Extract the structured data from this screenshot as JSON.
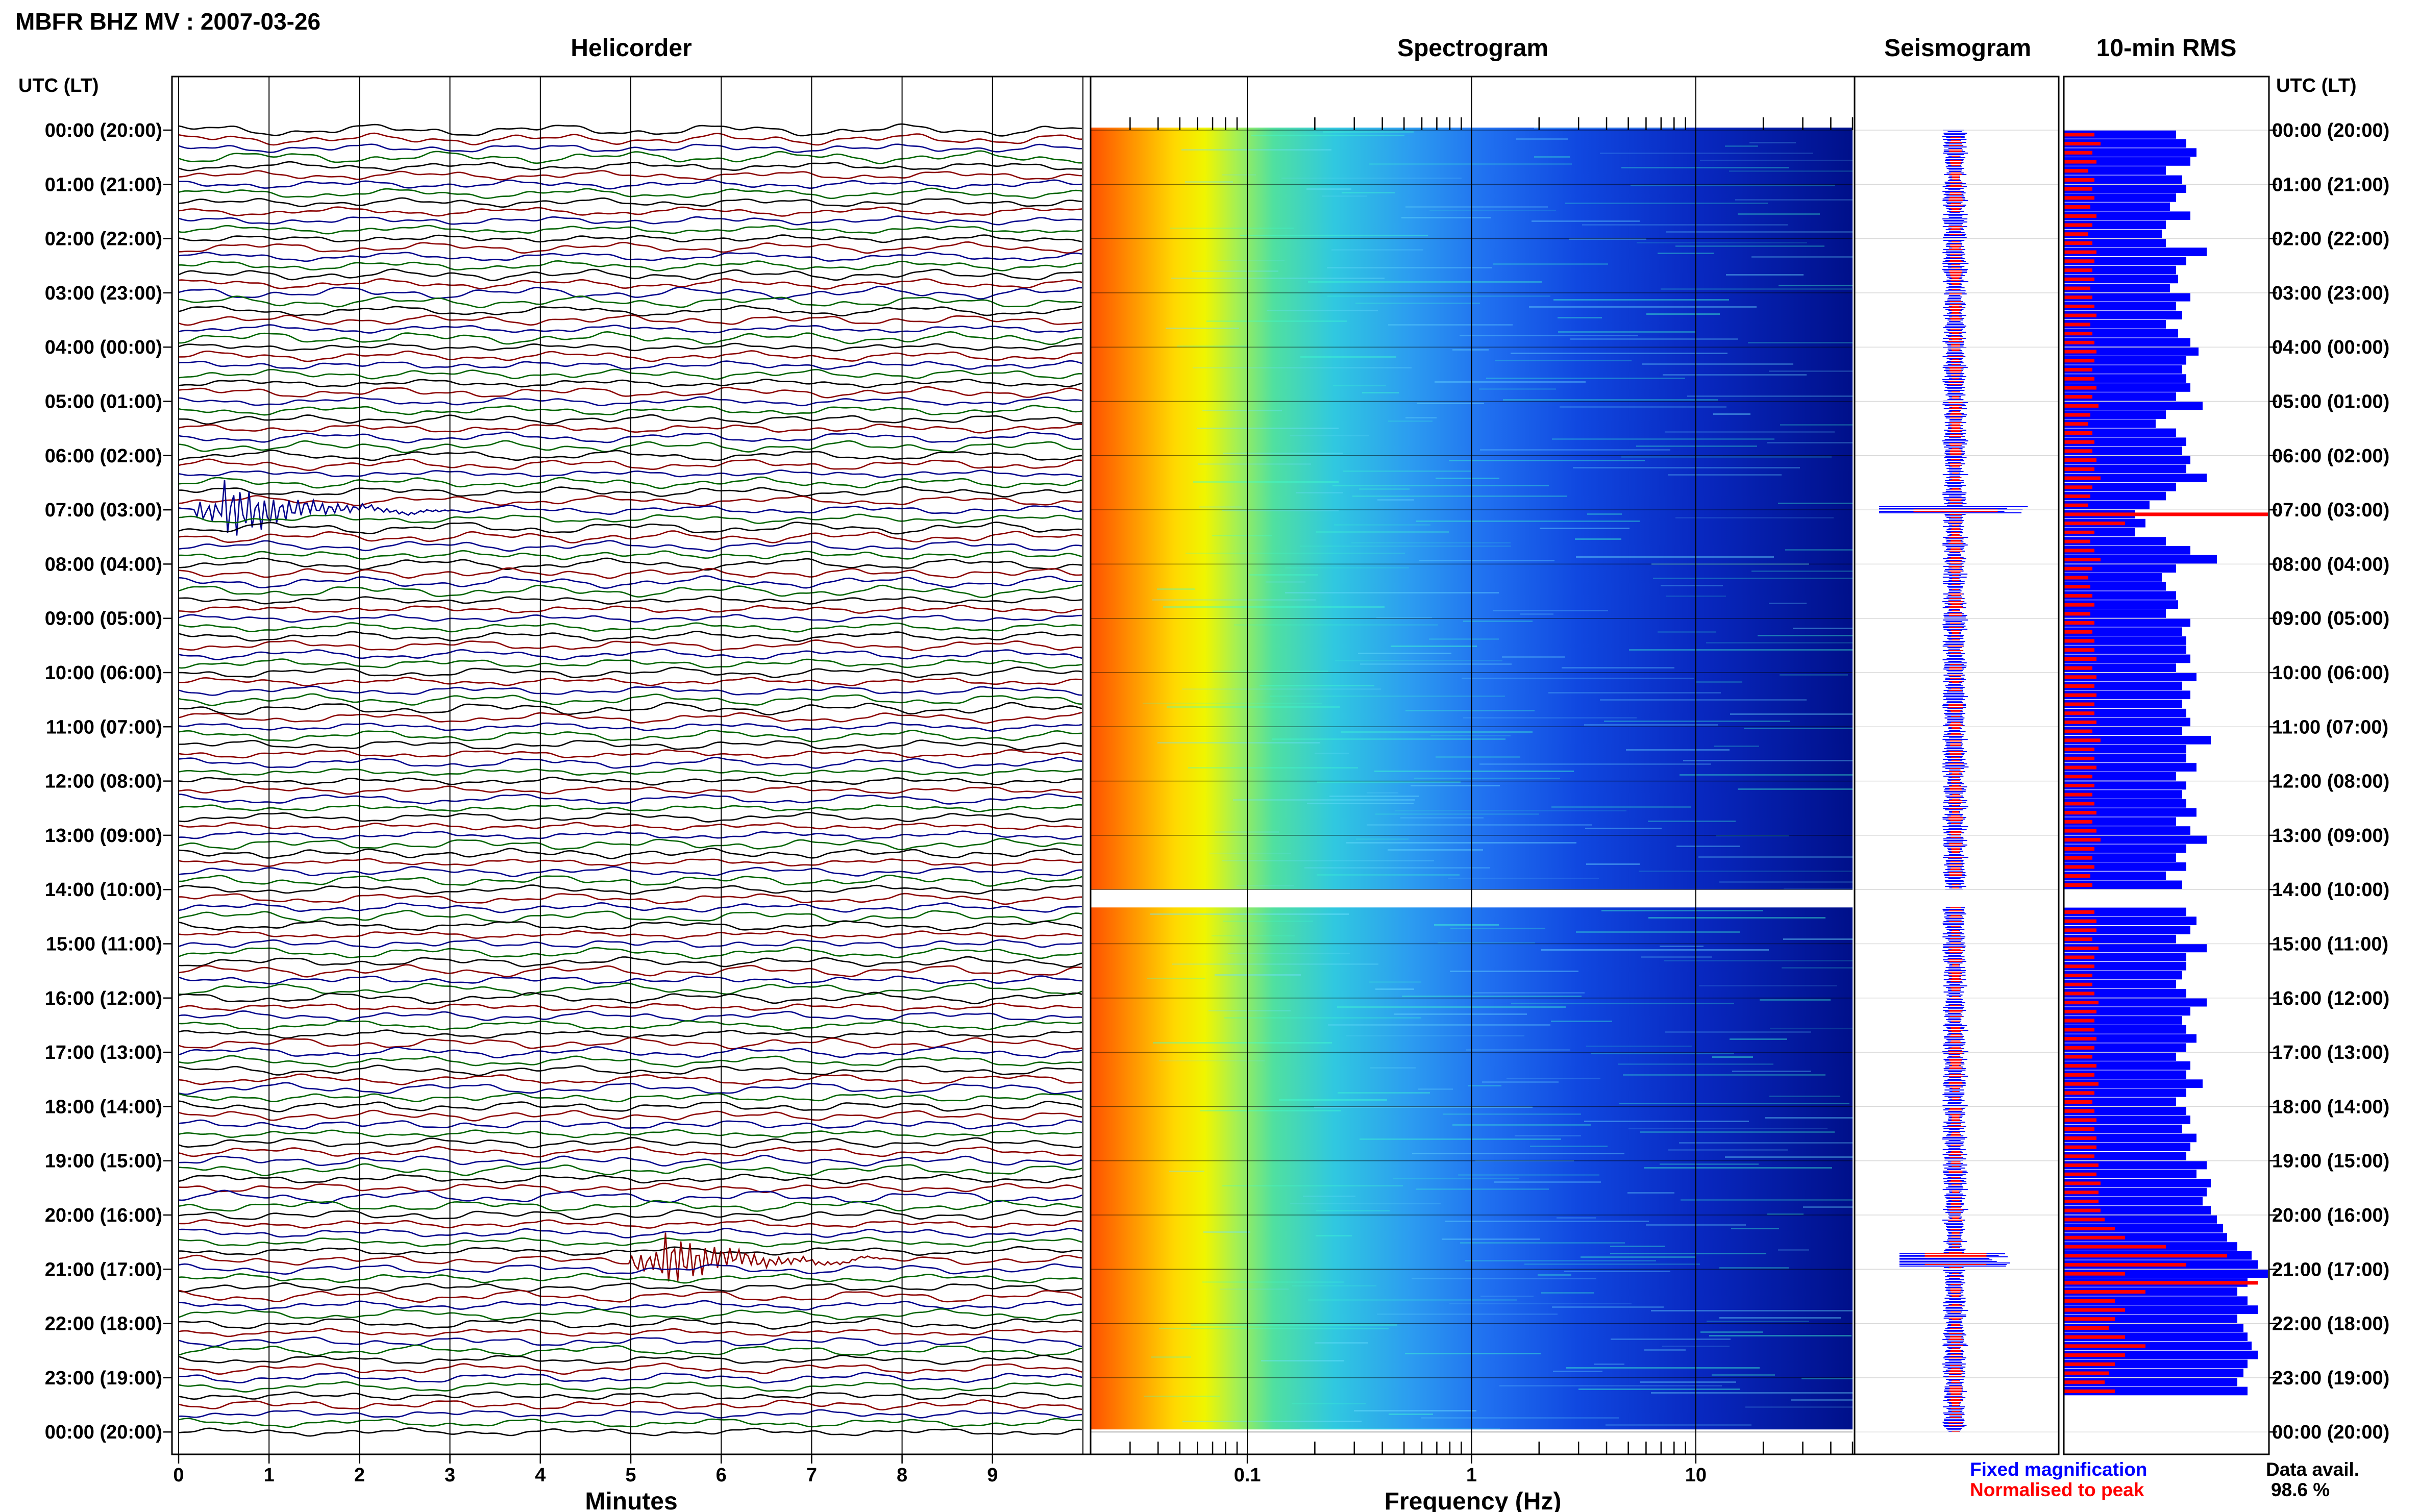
{
  "page_title": "MBFR BHZ MV : 2007-03-26",
  "panels": {
    "helicorder": "Helicorder",
    "spectrogram": "Spectrogram",
    "seismogram": "Seismogram",
    "rms": "10-min RMS"
  },
  "time_axis_label": "UTC (LT)",
  "time_ticks": [
    "00:00 (20:00)",
    "01:00 (21:00)",
    "02:00 (22:00)",
    "03:00 (23:00)",
    "04:00 (00:00)",
    "05:00 (01:00)",
    "06:00 (02:00)",
    "07:00 (03:00)",
    "08:00 (04:00)",
    "09:00 (05:00)",
    "10:00 (06:00)",
    "11:00 (07:00)",
    "12:00 (08:00)",
    "13:00 (09:00)",
    "14:00 (10:00)",
    "15:00 (11:00)",
    "16:00 (12:00)",
    "17:00 (13:00)",
    "18:00 (14:00)",
    "19:00 (15:00)",
    "20:00 (16:00)",
    "21:00 (17:00)",
    "22:00 (18:00)",
    "23:00 (19:00)",
    "00:00 (20:00)"
  ],
  "helicorder_xlabel": "Minutes",
  "helicorder_xticks": [
    "0",
    "1",
    "2",
    "3",
    "4",
    "5",
    "6",
    "7",
    "8",
    "9"
  ],
  "spectrogram_xlabel": "Frequency (Hz)",
  "spectrogram_xticks": [
    "0.1",
    "1",
    "10"
  ],
  "legend": {
    "fixed": "Fixed magnification",
    "normalised": "Normalised to peak",
    "fixed_color": "#0000ff",
    "normalised_color": "#ff0000"
  },
  "data_avail": {
    "label": "Data avail.",
    "value": "98.6 %"
  },
  "trace_colors": [
    "#000000",
    "#8b0000",
    "#00008b",
    "#006400"
  ],
  "chart_data": {
    "type": "heatmap",
    "title": "MBFR BHZ MV : 2007-03-26",
    "time_range_hours": [
      0,
      24
    ],
    "data_gap_hours": [
      14.0,
      14.33
    ],
    "helicorder": {
      "xlabel": "Minutes",
      "xlim": [
        0,
        10
      ],
      "traces_per_hour": 6,
      "events": [
        {
          "hour": 7.0,
          "minute": 0.5,
          "amplitude": "large"
        },
        {
          "hour": 20.83,
          "minute": 5.3,
          "amplitude": "large"
        }
      ]
    },
    "spectrogram": {
      "xlabel": "Frequency (Hz)",
      "xscale": "log",
      "xlim": [
        0.02,
        50
      ],
      "colormap": "jet"
    },
    "rms": {
      "series": [
        {
          "name": "Fixed magnification",
          "color": "#0000ff",
          "values": [
            0.55,
            0.6,
            0.65,
            0.62,
            0.5,
            0.58,
            0.6,
            0.55,
            0.52,
            0.62,
            0.5,
            0.48,
            0.5,
            0.7,
            0.6,
            0.55,
            0.56,
            0.52,
            0.62,
            0.55,
            0.58,
            0.5,
            0.56,
            0.62,
            0.66,
            0.6,
            0.58,
            0.6,
            0.62,
            0.55,
            0.68,
            0.5,
            0.45,
            0.55,
            0.6,
            0.58,
            0.62,
            0.6,
            0.7,
            0.55,
            0.5,
            0.42,
            0.35,
            0.4,
            0.35,
            0.5,
            0.62,
            0.75,
            0.55,
            0.48,
            0.5,
            0.55,
            0.56,
            0.5,
            0.62,
            0.58,
            0.6,
            0.6,
            0.62,
            0.55,
            0.65,
            0.58,
            0.62,
            0.58,
            0.6,
            0.62,
            0.58,
            0.72,
            0.6,
            0.6,
            0.65,
            0.55,
            0.6,
            0.58,
            0.6,
            0.65,
            0.55,
            0.62,
            0.7,
            0.6,
            0.55,
            0.6,
            0.5,
            0.58,
            0.6,
            0.52,
            0.6,
            0.65,
            0.62,
            0.55,
            0.7,
            0.6,
            0.6,
            0.58,
            0.55,
            0.6,
            0.7,
            0.62,
            0.58,
            0.6,
            0.65,
            0.6,
            0.55,
            0.62,
            0.6,
            0.68,
            0.6,
            0.55,
            0.6,
            0.62,
            0.58,
            0.65,
            0.62,
            0.6,
            0.7,
            0.65,
            0.72,
            0.7,
            0.68,
            0.72,
            0.75,
            0.78,
            0.8,
            0.85,
            0.92,
            0.95,
            1.0,
            0.9,
            0.85,
            0.9,
            0.95,
            0.85,
            0.88,
            0.9,
            0.92,
            0.95,
            0.9,
            0.88,
            0.85,
            0.9
          ]
        },
        {
          "name": "Normalised to peak",
          "color": "#ff0000",
          "values": [
            0.15,
            0.18,
            0.14,
            0.16,
            0.12,
            0.15,
            0.14,
            0.15,
            0.13,
            0.16,
            0.14,
            0.12,
            0.14,
            0.16,
            0.15,
            0.14,
            0.15,
            0.13,
            0.14,
            0.15,
            0.16,
            0.13,
            0.14,
            0.15,
            0.16,
            0.15,
            0.14,
            0.15,
            0.16,
            0.14,
            0.17,
            0.13,
            0.12,
            0.14,
            0.15,
            0.14,
            0.16,
            0.15,
            0.18,
            0.14,
            0.13,
            0.12,
            1.0,
            0.3,
            0.15,
            0.13,
            0.15,
            0.18,
            0.14,
            0.12,
            0.13,
            0.14,
            0.15,
            0.13,
            0.15,
            0.14,
            0.15,
            0.15,
            0.16,
            0.14,
            0.16,
            0.15,
            0.16,
            0.15,
            0.15,
            0.16,
            0.14,
            0.18,
            0.15,
            0.15,
            0.16,
            0.14,
            0.15,
            0.14,
            0.15,
            0.16,
            0.14,
            0.16,
            0.18,
            0.15,
            0.14,
            0.15,
            0.13,
            0.14,
            0.15,
            0.13,
            0.15,
            0.16,
            0.16,
            0.14,
            0.17,
            0.15,
            0.15,
            0.14,
            0.14,
            0.15,
            0.17,
            0.16,
            0.15,
            0.15,
            0.16,
            0.15,
            0.14,
            0.16,
            0.15,
            0.17,
            0.15,
            0.14,
            0.15,
            0.16,
            0.15,
            0.16,
            0.16,
            0.15,
            0.17,
            0.16,
            0.18,
            0.17,
            0.17,
            0.18,
            0.2,
            0.25,
            0.3,
            0.5,
            0.8,
            0.6,
            0.3,
            0.95,
            0.4,
            0.25,
            0.3,
            0.25,
            0.22,
            0.3,
            0.4,
            0.3,
            0.25,
            0.22,
            0.2,
            0.25
          ]
        }
      ]
    },
    "data_availability_percent": 98.6
  }
}
